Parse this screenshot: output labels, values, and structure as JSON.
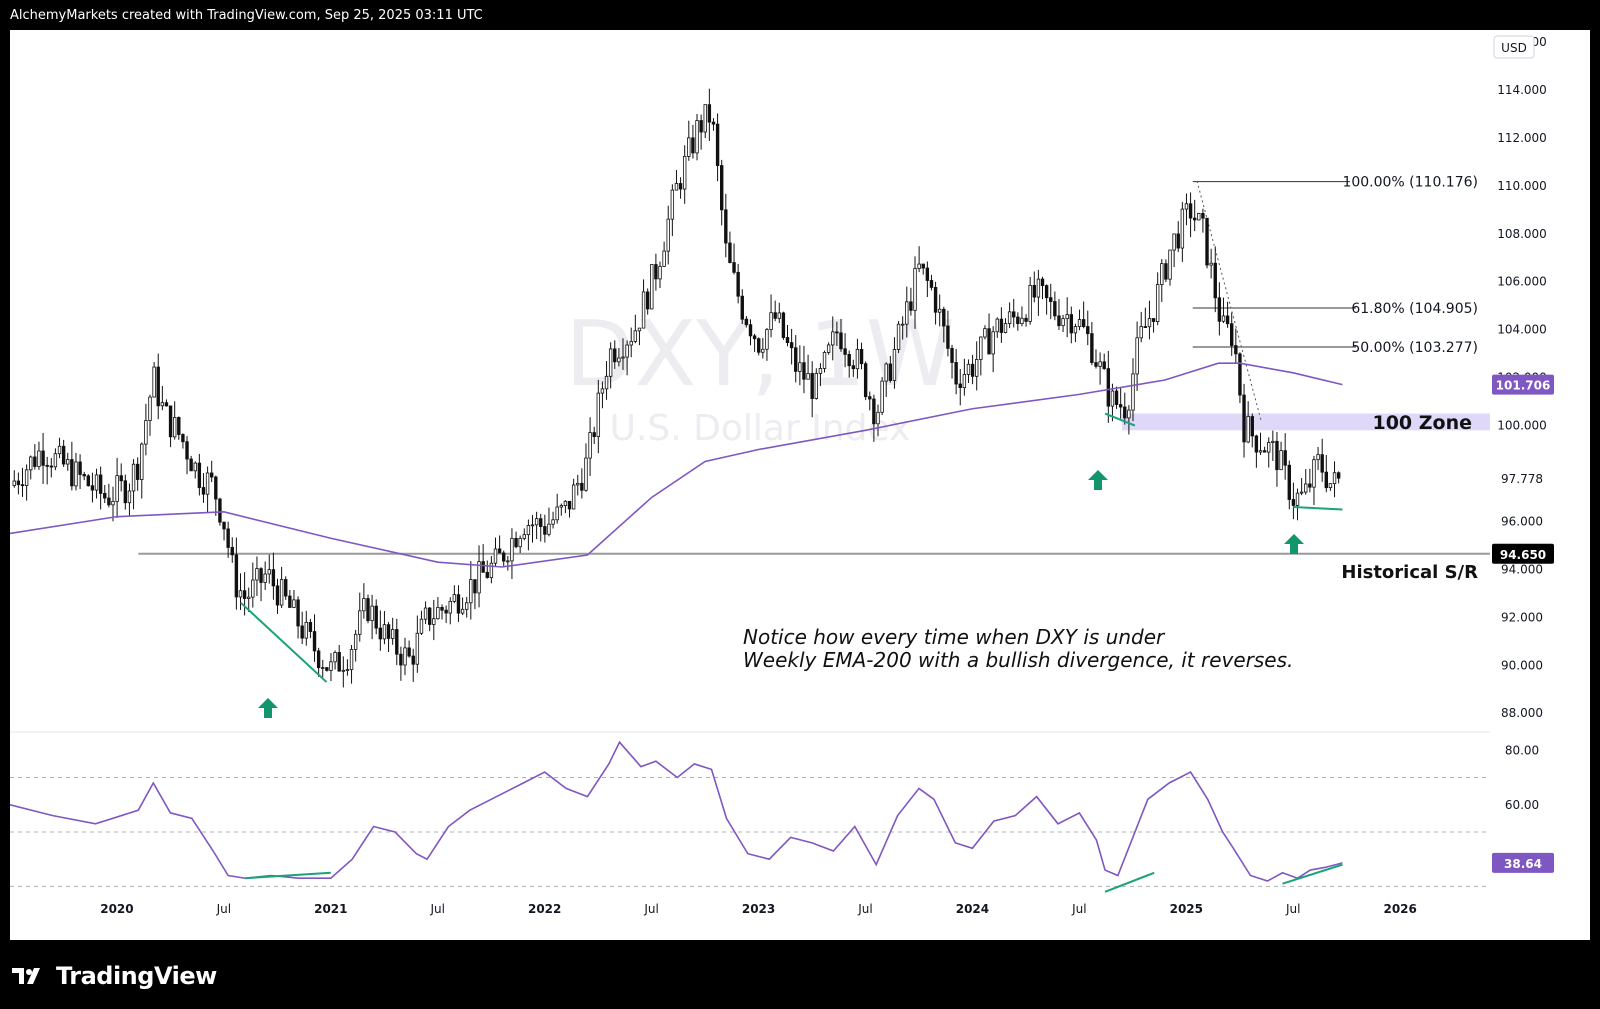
{
  "header": {
    "text": "AlchemyMarkets created with TradingView.com, Sep 25, 2025 03:11 UTC"
  },
  "footer": {
    "brand": "TradingView"
  },
  "chart_data": [
    {
      "type": "candlestick",
      "watermark": {
        "symbol": "DXY, 1W",
        "name": "U.S. Dollar Index"
      },
      "currency": "USD",
      "y_ticks": [
        "116.000",
        "114.000",
        "112.000",
        "110.000",
        "108.000",
        "106.000",
        "104.000",
        "102.000",
        "100.000",
        "97.778",
        "96.000",
        "94.000",
        "92.000",
        "90.000",
        "88.000"
      ],
      "y_tick_values": [
        116,
        114,
        112,
        110,
        108,
        106,
        104,
        102,
        100,
        97.778,
        96,
        94,
        92,
        90,
        88
      ],
      "ylim": [
        87.3,
        116.5
      ],
      "x_ticks": [
        "2020",
        "Jul",
        "2021",
        "Jul",
        "2022",
        "Jul",
        "2023",
        "Jul",
        "2024",
        "Jul",
        "2025",
        "Jul",
        "2026"
      ],
      "x_tick_dates": [
        2020.0,
        2020.5,
        2021.0,
        2021.5,
        2022.0,
        2022.5,
        2023.0,
        2023.5,
        2024.0,
        2024.5,
        2025.0,
        2025.5,
        2026.0
      ],
      "last_price": "97.778",
      "ema_label": "101.706",
      "sr_label": "94.650",
      "sr_value": 94.65,
      "sr_name": "Historical S/R",
      "zone": {
        "label": "100 Zone",
        "from": 99.8,
        "to": 100.5
      },
      "fib": [
        {
          "label": "100.00% (110.176)",
          "value": 110.176
        },
        {
          "label": "61.80% (104.905)",
          "value": 104.905
        },
        {
          "label": "50.00% (103.277)",
          "value": 103.277
        }
      ],
      "close_path": [
        [
          2019.5,
          97.5
        ],
        [
          2019.65,
          99.0
        ],
        [
          2019.8,
          98.0
        ],
        [
          2019.95,
          97.0
        ],
        [
          2020.05,
          97.5
        ],
        [
          2020.1,
          98.5
        ],
        [
          2020.17,
          102.0
        ],
        [
          2020.22,
          100.5
        ],
        [
          2020.3,
          99.5
        ],
        [
          2020.38,
          98.0
        ],
        [
          2020.45,
          97.5
        ],
        [
          2020.5,
          96.0
        ],
        [
          2020.55,
          93.5
        ],
        [
          2020.6,
          92.8
        ],
        [
          2020.7,
          93.8
        ],
        [
          2020.8,
          92.5
        ],
        [
          2020.9,
          91.0
        ],
        [
          2021.0,
          89.8
        ],
        [
          2021.08,
          90.5
        ],
        [
          2021.17,
          92.5
        ],
        [
          2021.27,
          91.0
        ],
        [
          2021.37,
          90.2
        ],
        [
          2021.45,
          92.0
        ],
        [
          2021.55,
          92.5
        ],
        [
          2021.65,
          93.3
        ],
        [
          2021.78,
          94.3
        ],
        [
          2021.9,
          96.0
        ],
        [
          2022.0,
          95.8
        ],
        [
          2022.1,
          96.5
        ],
        [
          2022.2,
          98.5
        ],
        [
          2022.3,
          103.0
        ],
        [
          2022.42,
          104.0
        ],
        [
          2022.52,
          106.5
        ],
        [
          2022.62,
          110.0
        ],
        [
          2022.72,
          112.5
        ],
        [
          2022.78,
          113.0
        ],
        [
          2022.85,
          107.0
        ],
        [
          2022.92,
          105.0
        ],
        [
          2023.0,
          103.5
        ],
        [
          2023.08,
          104.5
        ],
        [
          2023.17,
          102.5
        ],
        [
          2023.27,
          101.5
        ],
        [
          2023.37,
          104.0
        ],
        [
          2023.47,
          102.5
        ],
        [
          2023.55,
          100.5
        ],
        [
          2023.65,
          103.5
        ],
        [
          2023.75,
          106.5
        ],
        [
          2023.82,
          105.5
        ],
        [
          2023.92,
          102.0
        ],
        [
          2024.0,
          102.5
        ],
        [
          2024.1,
          104.0
        ],
        [
          2024.2,
          104.5
        ],
        [
          2024.3,
          105.5
        ],
        [
          2024.38,
          104.8
        ],
        [
          2024.48,
          104.5
        ],
        [
          2024.55,
          103.5
        ],
        [
          2024.65,
          101.0
        ],
        [
          2024.72,
          100.8
        ],
        [
          2024.78,
          103.5
        ],
        [
          2024.85,
          105.0
        ],
        [
          2024.93,
          107.5
        ],
        [
          2025.02,
          109.0
        ],
        [
          2025.08,
          108.0
        ],
        [
          2025.17,
          104.0
        ],
        [
          2025.22,
          103.8
        ],
        [
          2025.27,
          100.0
        ],
        [
          2025.32,
          99.5
        ],
        [
          2025.42,
          98.8
        ],
        [
          2025.5,
          97.0
        ],
        [
          2025.55,
          97.0
        ],
        [
          2025.62,
          98.5
        ],
        [
          2025.68,
          97.5
        ],
        [
          2025.73,
          97.778
        ]
      ],
      "ema200_path": [
        [
          2019.5,
          95.5
        ],
        [
          2020.0,
          96.2
        ],
        [
          2020.5,
          96.4
        ],
        [
          2021.0,
          95.3
        ],
        [
          2021.5,
          94.3
        ],
        [
          2021.8,
          94.1
        ],
        [
          2022.2,
          94.6
        ],
        [
          2022.5,
          97.0
        ],
        [
          2022.75,
          98.5
        ],
        [
          2023.0,
          99.0
        ],
        [
          2023.5,
          99.8
        ],
        [
          2024.0,
          100.7
        ],
        [
          2024.5,
          101.3
        ],
        [
          2024.9,
          101.9
        ],
        [
          2025.15,
          102.6
        ],
        [
          2025.25,
          102.6
        ],
        [
          2025.5,
          102.2
        ],
        [
          2025.73,
          101.706
        ]
      ],
      "annotation": [
        "Notice how every time when DXY is under",
        "Weekly EMA-200 with a bullish divergence, it reverses."
      ]
    },
    {
      "type": "line",
      "series_value_label": "38.64",
      "y_ticks": [
        "80.00",
        "60.00"
      ],
      "y_tick_values": [
        80,
        60
      ],
      "ylim": [
        25,
        86
      ],
      "dashed_levels": [
        70,
        50,
        30
      ],
      "path": [
        [
          2019.5,
          60
        ],
        [
          2019.7,
          56
        ],
        [
          2019.9,
          53
        ],
        [
          2020.1,
          58
        ],
        [
          2020.17,
          68
        ],
        [
          2020.25,
          57
        ],
        [
          2020.35,
          55
        ],
        [
          2020.45,
          43
        ],
        [
          2020.52,
          34
        ],
        [
          2020.6,
          33
        ],
        [
          2020.72,
          34
        ],
        [
          2020.85,
          33
        ],
        [
          2021.0,
          33
        ],
        [
          2021.1,
          40
        ],
        [
          2021.2,
          52
        ],
        [
          2021.3,
          50
        ],
        [
          2021.4,
          42
        ],
        [
          2021.45,
          40
        ],
        [
          2021.55,
          52
        ],
        [
          2021.65,
          58
        ],
        [
          2021.75,
          62
        ],
        [
          2021.9,
          68
        ],
        [
          2022.0,
          72
        ],
        [
          2022.1,
          66
        ],
        [
          2022.2,
          63
        ],
        [
          2022.3,
          75
        ],
        [
          2022.35,
          83
        ],
        [
          2022.45,
          74
        ],
        [
          2022.52,
          76
        ],
        [
          2022.62,
          70
        ],
        [
          2022.7,
          75
        ],
        [
          2022.78,
          73
        ],
        [
          2022.85,
          55
        ],
        [
          2022.95,
          42
        ],
        [
          2023.05,
          40
        ],
        [
          2023.15,
          48
        ],
        [
          2023.25,
          46
        ],
        [
          2023.35,
          43
        ],
        [
          2023.45,
          52
        ],
        [
          2023.55,
          38
        ],
        [
          2023.65,
          56
        ],
        [
          2023.75,
          66
        ],
        [
          2023.82,
          62
        ],
        [
          2023.92,
          46
        ],
        [
          2024.0,
          44
        ],
        [
          2024.1,
          54
        ],
        [
          2024.2,
          56
        ],
        [
          2024.3,
          63
        ],
        [
          2024.4,
          53
        ],
        [
          2024.5,
          57
        ],
        [
          2024.58,
          47
        ],
        [
          2024.62,
          36
        ],
        [
          2024.68,
          34
        ],
        [
          2024.75,
          48
        ],
        [
          2024.82,
          62
        ],
        [
          2024.92,
          68
        ],
        [
          2025.02,
          72
        ],
        [
          2025.1,
          62
        ],
        [
          2025.17,
          50
        ],
        [
          2025.22,
          44
        ],
        [
          2025.3,
          34
        ],
        [
          2025.38,
          32
        ],
        [
          2025.45,
          35
        ],
        [
          2025.52,
          33
        ],
        [
          2025.58,
          36
        ],
        [
          2025.65,
          37
        ],
        [
          2025.73,
          38.64
        ]
      ],
      "divergence_lines": [
        [
          [
            2020.6,
            33
          ],
          [
            2021.0,
            35
          ]
        ],
        [
          [
            2024.62,
            28
          ],
          [
            2024.85,
            35
          ]
        ],
        [
          [
            2025.45,
            31
          ],
          [
            2025.73,
            38
          ]
        ]
      ]
    }
  ]
}
